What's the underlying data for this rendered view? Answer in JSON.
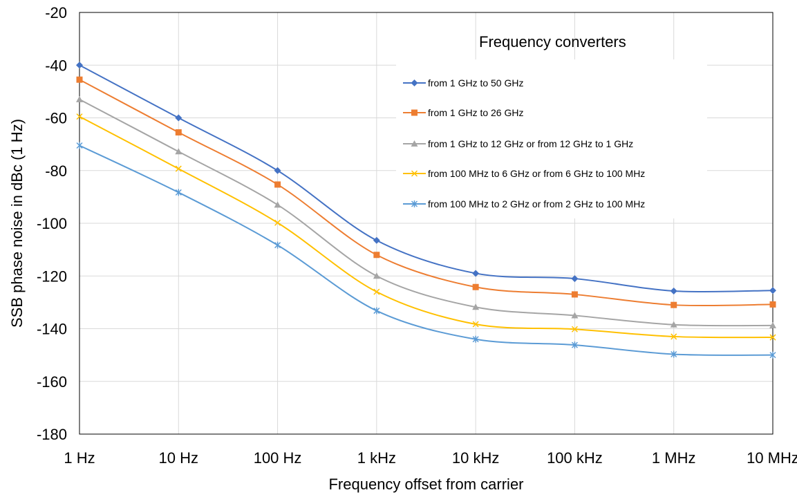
{
  "chart_data": {
    "type": "line",
    "xlabel": "Frequency offset from carrier",
    "ylabel": "SSB phase noise in dBc (1 Hz)",
    "x_scale": "log",
    "categories": [
      "1 Hz",
      "10 Hz",
      "100 Hz",
      "1 kHz",
      "10 kHz",
      "100 kHz",
      "1 MHz",
      "10 MHz"
    ],
    "ylim": [
      -180,
      -20
    ],
    "yticks": [
      -20,
      -40,
      -60,
      -80,
      -100,
      -120,
      -140,
      -160,
      -180
    ],
    "grid": true,
    "legend_title": "Frequency converters",
    "legend_position": "top-right",
    "series": [
      {
        "name": "from 1 GHz to 50 GHz",
        "color": "#4472C4",
        "marker": "diamond",
        "values": [
          -40,
          -60,
          -80,
          -106.5,
          -119,
          -121,
          -125.7,
          -125.5
        ]
      },
      {
        "name": "from 1 GHz to 26 GHz",
        "color": "#ED7D31",
        "marker": "square",
        "values": [
          -45.5,
          -65.5,
          -85.3,
          -112,
          -124.2,
          -127,
          -131,
          -130.8
        ]
      },
      {
        "name": "from 1 GHz to 12 GHz or from 12 GHz to 1 GHz",
        "color": "#A5A5A5",
        "marker": "triangle",
        "values": [
          -53,
          -72.8,
          -93,
          -120,
          -131.8,
          -135,
          -138.5,
          -138.8
        ]
      },
      {
        "name": "from 100 MHz to 6 GHz or from 6 GHz to 100 MHz",
        "color": "#FFC000",
        "marker": "x",
        "values": [
          -59.5,
          -79.3,
          -99.8,
          -126,
          -138.3,
          -140.2,
          -143,
          -143.3
        ]
      },
      {
        "name": "from 100 MHz to 2 GHz or from 2 GHz to 100 MHz",
        "color": "#5B9BD5",
        "marker": "star",
        "values": [
          -70.5,
          -88.3,
          -108.3,
          -133.2,
          -144,
          -146.2,
          -149.7,
          -150
        ]
      }
    ]
  }
}
